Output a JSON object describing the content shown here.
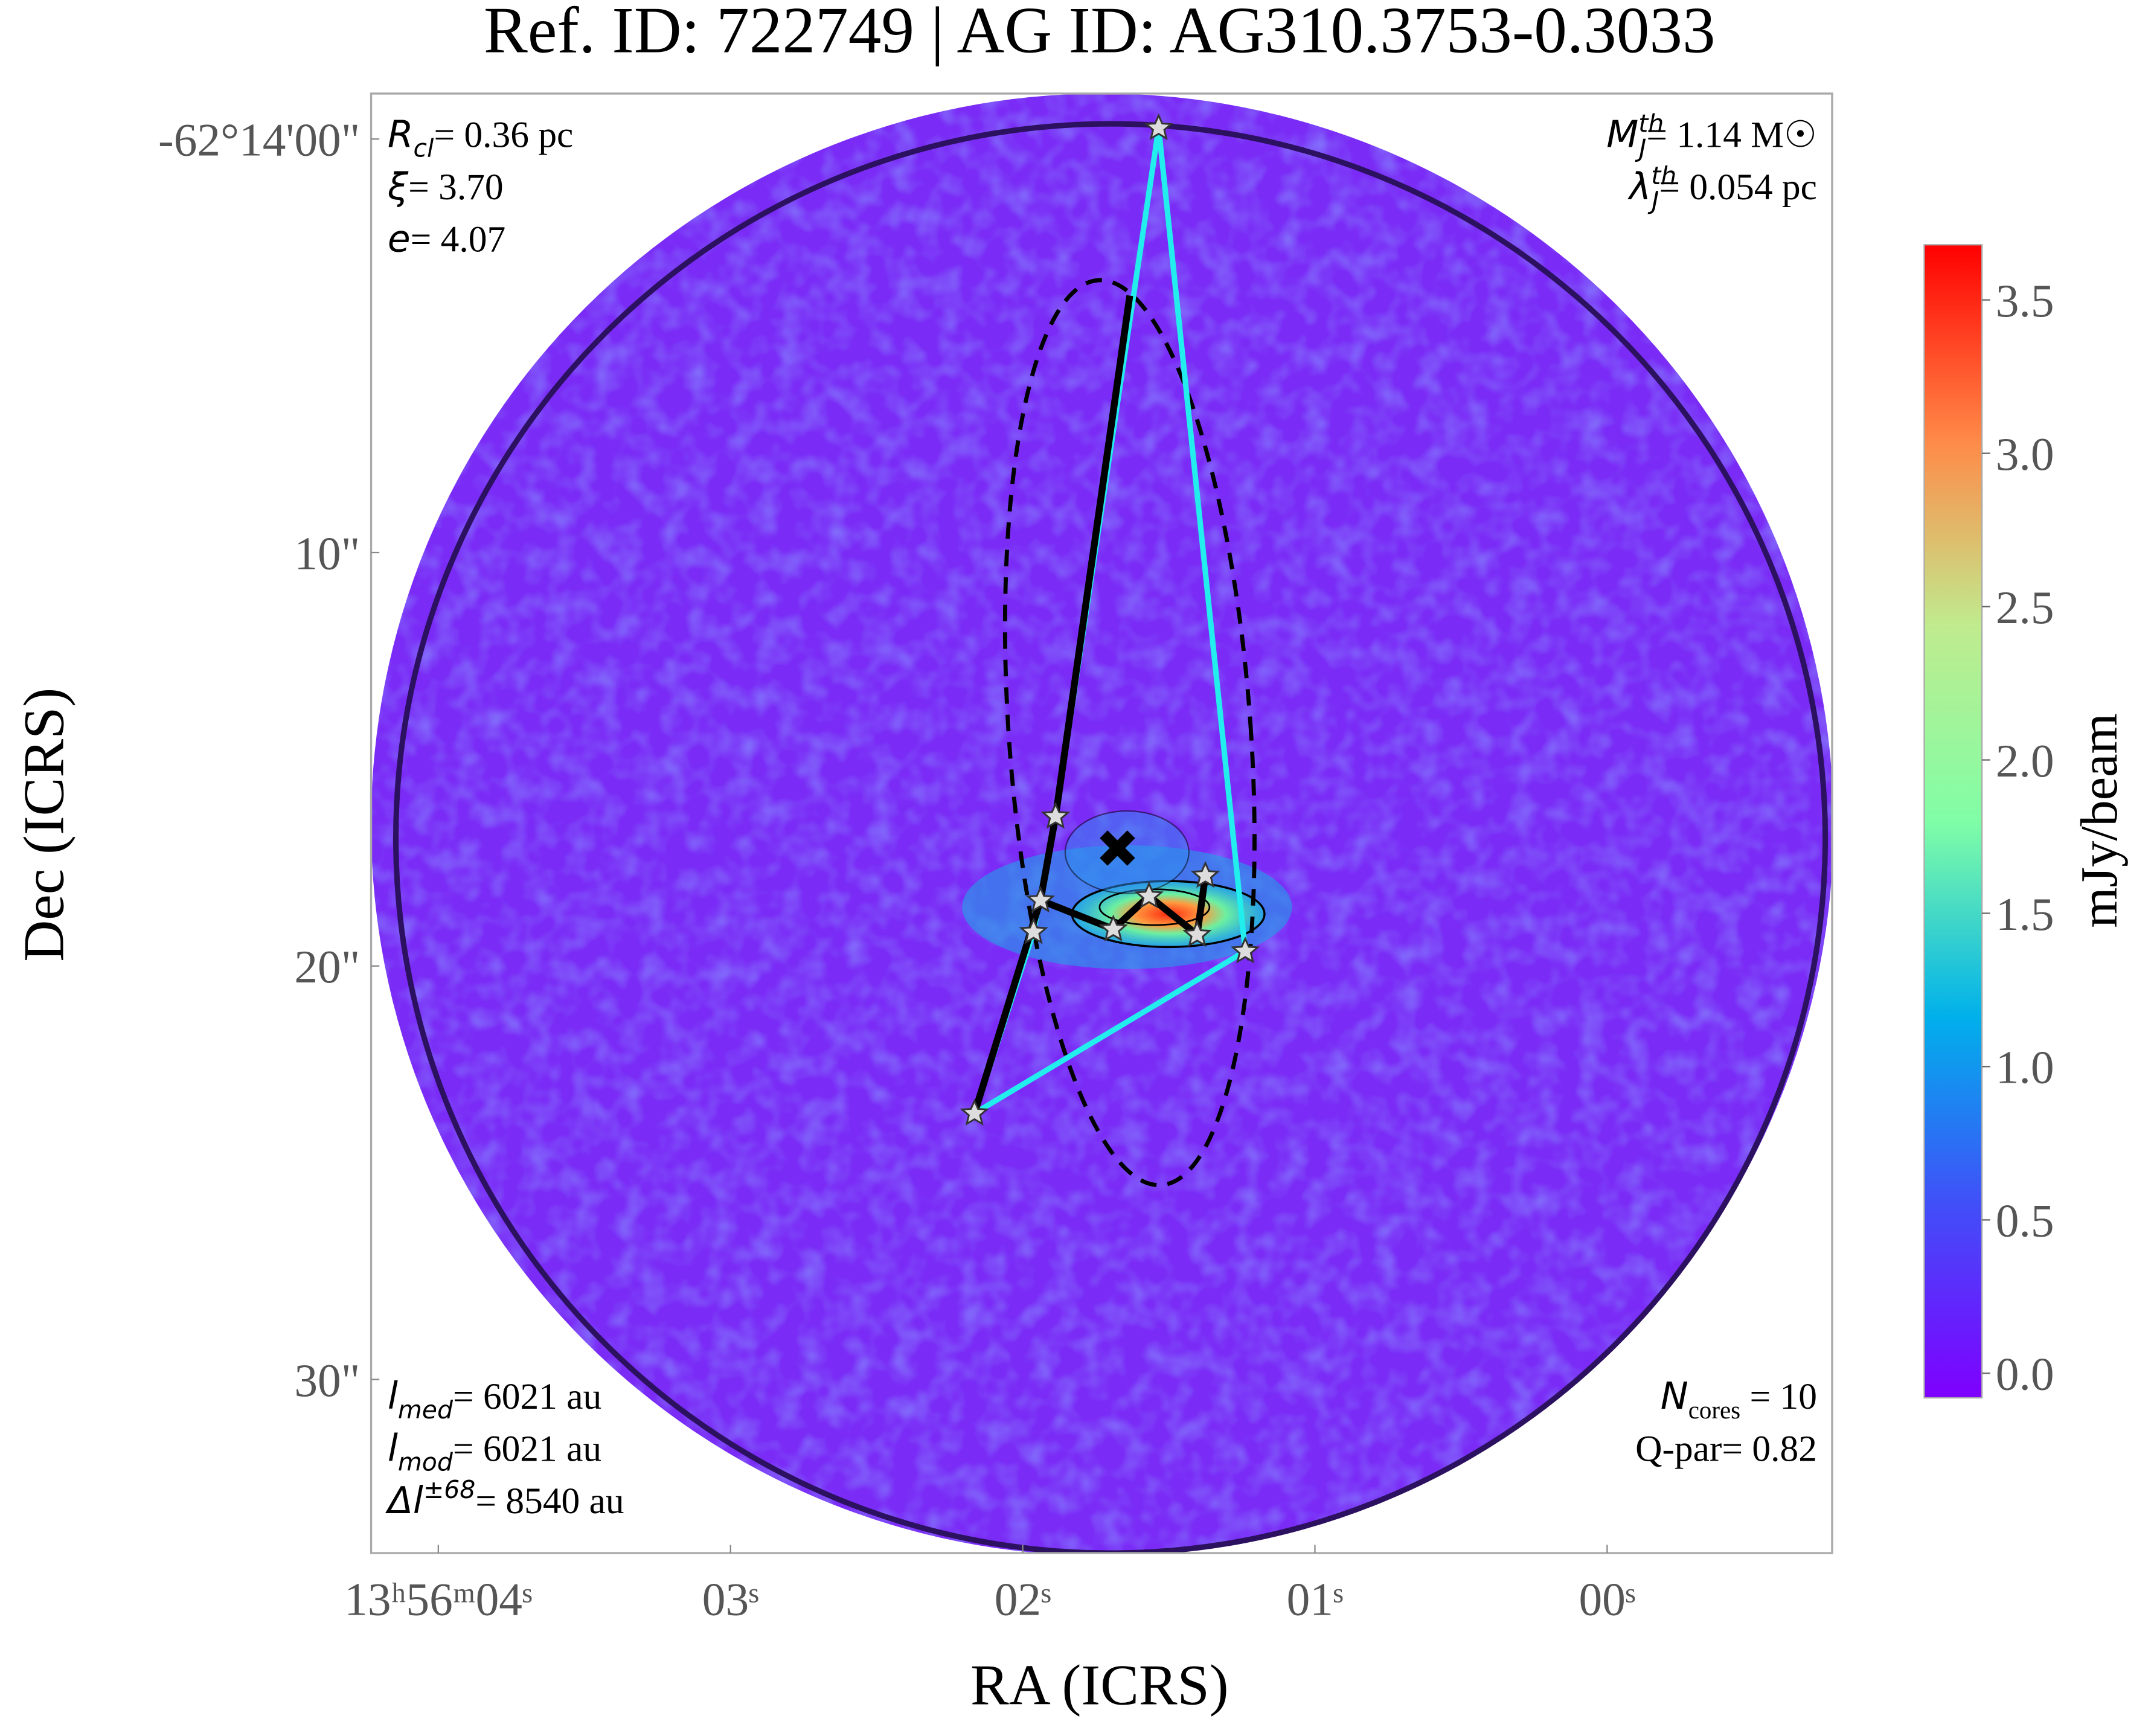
{
  "chart_data": {
    "type": "image",
    "title": "Ref. ID: 722749 | AG ID: AG310.3753-0.3033",
    "xlabel": "RA (ICRS)",
    "ylabel": "Dec (ICRS)",
    "xlim": [
      4.23,
      -0.77
    ],
    "xticks": [
      {
        "value": 4,
        "label": "13ʰ56ᵐ04ˢ"
      },
      {
        "value": 3,
        "label": "03ˢ"
      },
      {
        "value": 2,
        "label": "02ˢ"
      },
      {
        "value": 1,
        "label": "01ˢ"
      },
      {
        "value": 0,
        "label": "00ˢ"
      }
    ],
    "ylim": [
      -1.1,
      34.2
    ],
    "yticks": [
      {
        "value": 0,
        "label": "-62°14'00\""
      },
      {
        "value": 10,
        "label": "10\""
      },
      {
        "value": 20,
        "label": "20\""
      },
      {
        "value": 30,
        "label": "30\""
      }
    ],
    "colorbar": {
      "label": "mJy/beam",
      "clim": [
        -0.08,
        3.68
      ],
      "ticks": [
        {
          "value": 0,
          "label": "0.0"
        },
        {
          "value": 0.5,
          "label": "0.5"
        },
        {
          "value": 1,
          "label": "1.0"
        },
        {
          "value": 1.5,
          "label": "1.5"
        },
        {
          "value": 2,
          "label": "2.0"
        },
        {
          "value": 2.5,
          "label": "2.5"
        },
        {
          "value": 3,
          "label": "3.0"
        },
        {
          "value": 3.5,
          "label": "3.5"
        }
      ]
    },
    "annotations": {
      "top_left": [
        {
          "symbol": "R",
          "sub": "cl",
          "text": "= 0.36 pc"
        },
        {
          "symbol": "ξ",
          "text": "= 3.70"
        },
        {
          "symbol": "e",
          "text": "= 4.07"
        }
      ],
      "top_right": [
        {
          "symbol": "M",
          "sub": "J",
          "sup": "th",
          "text": "= 1.14 M☉"
        },
        {
          "symbol": "λ",
          "sub": "J",
          "sup": "th",
          "text": "= 0.054 pc"
        }
      ],
      "bottom_left": [
        {
          "symbol": "l",
          "sub": "med",
          "text": "= 6021 au"
        },
        {
          "symbol": "l",
          "sub": "mod",
          "text": "= 6021 au"
        },
        {
          "symbol": "Δl",
          "sup": "±68",
          "text": "= 8540 au"
        }
      ],
      "bottom_right": [
        {
          "symbol": "N",
          "sub": "cores",
          "text": " = 10"
        },
        {
          "symbol": "Q-par",
          "text": "= 0.82"
        }
      ]
    }
  }
}
